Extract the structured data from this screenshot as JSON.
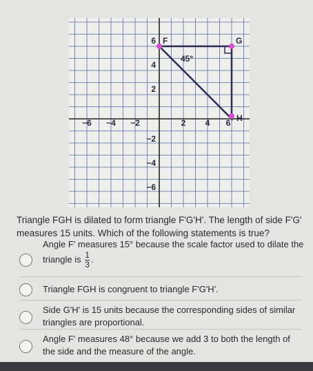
{
  "graph": {
    "x_labels": [
      "−6",
      "−4",
      "−2",
      "2",
      "4",
      "6"
    ],
    "y_labels": [
      "6",
      "4",
      "2",
      "−2",
      "−4",
      "−6"
    ],
    "vertices": [
      "F",
      "G",
      "H"
    ],
    "angle_label": "45°"
  },
  "question": "Triangle FGH is dilated to form triangle F'G'H'. The length of side F'G' measures 15 units. Which of the following statements is true?",
  "options": [
    {
      "text": "Angle F' measures 15° because the scale factor used to dilate the triangle is",
      "fraction": {
        "numerator": "1",
        "denominator": "3"
      },
      "end": "."
    },
    {
      "text": "Triangle FGH is congruent to triangle F'G'H'."
    },
    {
      "text": "Side G'H' is 15 units because the corresponding sides of similar triangles are proportional."
    },
    {
      "text": "Angle F' measures 48° because we add 3 to both the length of the side and the measure of the angle."
    }
  ]
}
